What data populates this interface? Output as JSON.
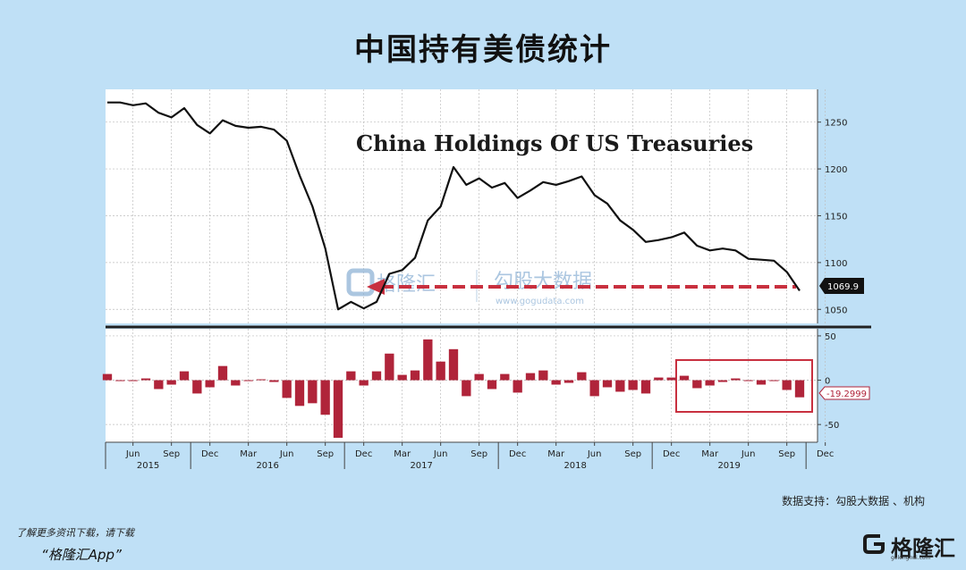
{
  "page": {
    "title": "中国持有美债统计",
    "credit": "数据支持：勾股大数据 、机构",
    "app_line1": "了解更多资讯下载，请下载",
    "app_line2": "“格隆汇App”",
    "logo_text": "格隆汇",
    "logo_sub": "gelonghui.com",
    "watermark_brand": "格隆汇",
    "watermark_brand2": "勾股大数据",
    "watermark_url": "www.gogudata.com"
  },
  "colors": {
    "background": "#bfe0f6",
    "plot_background": "#ffffff",
    "line": "#111111",
    "bar": "#b0243a",
    "highlight_box": "#c8303f",
    "arrow": "#c8303f",
    "divider": "#222222"
  },
  "chart_data": [
    {
      "type": "line",
      "title": "China Holdings Of US Treasuries",
      "xlabel": "",
      "ylabel": "",
      "ylim": [
        1035,
        1285
      ],
      "yticks": [
        1050,
        1100,
        1150,
        1200,
        1250
      ],
      "grid": true,
      "last_value_label": "1069.9",
      "values": [
        1271,
        1271,
        1268,
        1270,
        1260,
        1255,
        1265,
        1247,
        1238,
        1252,
        1246,
        1244,
        1245,
        1242,
        1230,
        1193,
        1160,
        1115,
        1050,
        1058,
        1051,
        1058,
        1088,
        1092,
        1105,
        1145,
        1160,
        1202,
        1183,
        1190,
        1180,
        1185,
        1169,
        1177,
        1186,
        1183,
        1187,
        1192,
        1172,
        1163,
        1145,
        1135,
        1122,
        1124,
        1127,
        1132,
        1118,
        1113,
        1115,
        1113,
        1104,
        1103,
        1102,
        1090,
        1069.9
      ]
    },
    {
      "type": "bar",
      "title": "",
      "ylim": [
        -70,
        58
      ],
      "yticks": [
        -50,
        0,
        50
      ],
      "grid": true,
      "last_value_label": "-19.2999",
      "values": [
        7,
        -1,
        -1,
        2,
        -10,
        -5,
        10,
        -15,
        -8,
        16,
        -6,
        -1,
        1,
        -2,
        -20,
        -29,
        -26,
        -39,
        -65,
        10,
        -6,
        10,
        30,
        6,
        11,
        46,
        21,
        35,
        -18,
        7,
        -10,
        7,
        -14,
        8,
        11,
        -5,
        -3,
        9,
        -18,
        -8,
        -13,
        -11,
        -15,
        3,
        3,
        5,
        -9,
        -6,
        -2,
        2,
        -1,
        -5,
        0,
        -11,
        -19.2999
      ]
    }
  ],
  "x_axis": {
    "months": [
      "Jun",
      "Sep",
      "Dec",
      "Mar",
      "Jun",
      "Sep",
      "Dec",
      "Mar",
      "Jun",
      "Sep",
      "Dec",
      "Mar",
      "Jun",
      "Sep",
      "Dec",
      "Mar",
      "Jun",
      "Sep",
      "Dec"
    ],
    "years": [
      "2015",
      "2016",
      "2017",
      "2018",
      "2019"
    ]
  }
}
